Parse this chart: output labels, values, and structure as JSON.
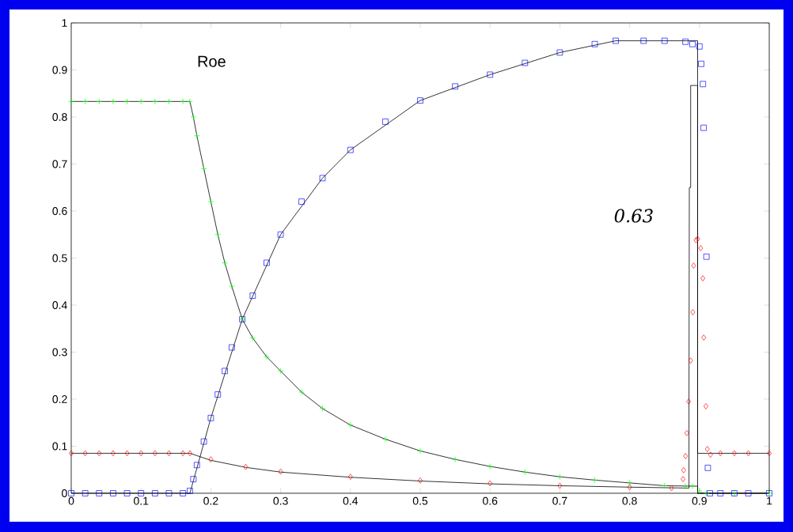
{
  "chart_data": {
    "type": "scatter",
    "annotations": [
      "Roe",
      "0.63"
    ],
    "xlim": [
      0,
      1
    ],
    "ylim": [
      0,
      1
    ],
    "xticks": [
      0,
      0.1,
      0.2,
      0.3,
      0.4,
      0.5,
      0.6,
      0.7,
      0.8,
      0.9,
      1
    ],
    "yticks": [
      0,
      0.1,
      0.2,
      0.3,
      0.4,
      0.5,
      0.6,
      0.7,
      0.8,
      0.9,
      1
    ],
    "grid": false,
    "series": [
      {
        "type": "line",
        "marker": "none",
        "color": "#000000",
        "x": [
          0,
          0.17,
          0.175,
          0.18,
          0.19,
          0.2,
          0.21,
          0.22,
          0.23,
          0.245,
          0.26,
          0.28,
          0.3,
          0.33,
          0.36,
          0.4,
          0.45,
          0.5,
          0.55,
          0.6,
          0.65,
          0.7,
          0.75,
          0.8,
          0.85,
          0.8974,
          0.8974,
          1
        ],
        "values": [
          0.833,
          0.833,
          0.8,
          0.76,
          0.69,
          0.62,
          0.55,
          0.49,
          0.44,
          0.37,
          0.33,
          0.29,
          0.26,
          0.215,
          0.18,
          0.145,
          0.115,
          0.09,
          0.072,
          0.057,
          0.045,
          0.035,
          0.028,
          0.022,
          0.016,
          0.015,
          0,
          0
        ]
      },
      {
        "type": "line",
        "marker": "none",
        "color": "#000000",
        "x": [
          0,
          0.17,
          0.2,
          0.25,
          0.3,
          0.4,
          0.5,
          0.6,
          0.7,
          0.8,
          0.885,
          0.885,
          0.8855,
          0.8874,
          0.8874,
          0.8974,
          0.8974,
          1
        ],
        "values": [
          0.085,
          0.085,
          0.07,
          0.055,
          0.045,
          0.034,
          0.026,
          0.02,
          0.016,
          0.013,
          0.011,
          0.21,
          0.65,
          0.65,
          0.867,
          0.867,
          0.085,
          0.085
        ]
      },
      {
        "type": "line",
        "marker": "none",
        "color": "#000000",
        "x": [
          0,
          0.17,
          0.2,
          0.245,
          0.3,
          0.36,
          0.4,
          0.5,
          0.6,
          0.7,
          0.78,
          0.8974,
          0.8974,
          1
        ],
        "values": [
          0,
          0,
          0.16,
          0.37,
          0.55,
          0.67,
          0.73,
          0.835,
          0.89,
          0.937,
          0.962,
          0.962,
          0,
          0
        ]
      },
      {
        "marker": "cross",
        "color": "#00ff00",
        "x": [
          0,
          0.02,
          0.04,
          0.06,
          0.08,
          0.1,
          0.12,
          0.14,
          0.16,
          0.17,
          0.175,
          0.18,
          0.19,
          0.2,
          0.21,
          0.22,
          0.23,
          0.245,
          0.26,
          0.28,
          0.3,
          0.33,
          0.36,
          0.4,
          0.45,
          0.5,
          0.55,
          0.6,
          0.65,
          0.7,
          0.75,
          0.8,
          0.85,
          0.88,
          0.89,
          0.9,
          0.91,
          0.95,
          1
        ],
        "values": [
          0.833,
          0.833,
          0.833,
          0.833,
          0.833,
          0.833,
          0.833,
          0.833,
          0.833,
          0.833,
          0.8,
          0.76,
          0.69,
          0.62,
          0.55,
          0.49,
          0.44,
          0.37,
          0.33,
          0.29,
          0.26,
          0.215,
          0.18,
          0.145,
          0.115,
          0.09,
          0.072,
          0.057,
          0.045,
          0.035,
          0.028,
          0.022,
          0.016,
          0.015,
          0.015,
          0.005,
          0,
          0,
          0
        ]
      },
      {
        "marker": "diamond",
        "color": "#ff0000",
        "x": [
          0,
          0.02,
          0.04,
          0.06,
          0.08,
          0.1,
          0.12,
          0.14,
          0.16,
          0.17,
          0.2,
          0.25,
          0.3,
          0.4,
          0.5,
          0.6,
          0.7,
          0.8,
          0.86,
          0.8765,
          0.8773,
          0.88,
          0.8818,
          0.8844,
          0.8874,
          0.8905,
          0.8917,
          0.8952,
          0.8974,
          0.9018,
          0.9048,
          0.9061,
          0.9092,
          0.9113,
          0.9158,
          0.93,
          0.95,
          0.97,
          1
        ],
        "values": [
          0.085,
          0.085,
          0.085,
          0.085,
          0.085,
          0.085,
          0.085,
          0.085,
          0.085,
          0.085,
          0.072,
          0.056,
          0.046,
          0.035,
          0.027,
          0.021,
          0.016,
          0.013,
          0.011,
          0.03,
          0.049,
          0.079,
          0.128,
          0.195,
          0.282,
          0.385,
          0.484,
          0.538,
          0.541,
          0.521,
          0.457,
          0.331,
          0.185,
          0.094,
          0.082,
          0.085,
          0.085,
          0.085,
          0.085
        ]
      },
      {
        "marker": "square",
        "color": "#0000ff",
        "x": [
          0,
          0.02,
          0.04,
          0.06,
          0.08,
          0.1,
          0.12,
          0.14,
          0.16,
          0.17,
          0.175,
          0.18,
          0.19,
          0.2,
          0.21,
          0.22,
          0.23,
          0.245,
          0.26,
          0.28,
          0.3,
          0.33,
          0.36,
          0.4,
          0.45,
          0.5,
          0.55,
          0.6,
          0.65,
          0.7,
          0.75,
          0.78,
          0.82,
          0.85,
          0.88,
          0.89,
          0.9,
          0.9025,
          0.905,
          0.906,
          0.91,
          0.912,
          0.915,
          0.93,
          0.95,
          0.97,
          1
        ],
        "values": [
          0,
          0,
          0,
          0,
          0,
          0,
          0,
          0,
          0,
          0.005,
          0.03,
          0.06,
          0.11,
          0.16,
          0.21,
          0.26,
          0.31,
          0.37,
          0.42,
          0.49,
          0.55,
          0.62,
          0.67,
          0.73,
          0.79,
          0.835,
          0.865,
          0.89,
          0.915,
          0.937,
          0.955,
          0.962,
          0.962,
          0.962,
          0.96,
          0.955,
          0.95,
          0.913,
          0.87,
          0.777,
          0.503,
          0.054,
          0,
          0,
          0,
          0,
          0
        ]
      }
    ]
  }
}
